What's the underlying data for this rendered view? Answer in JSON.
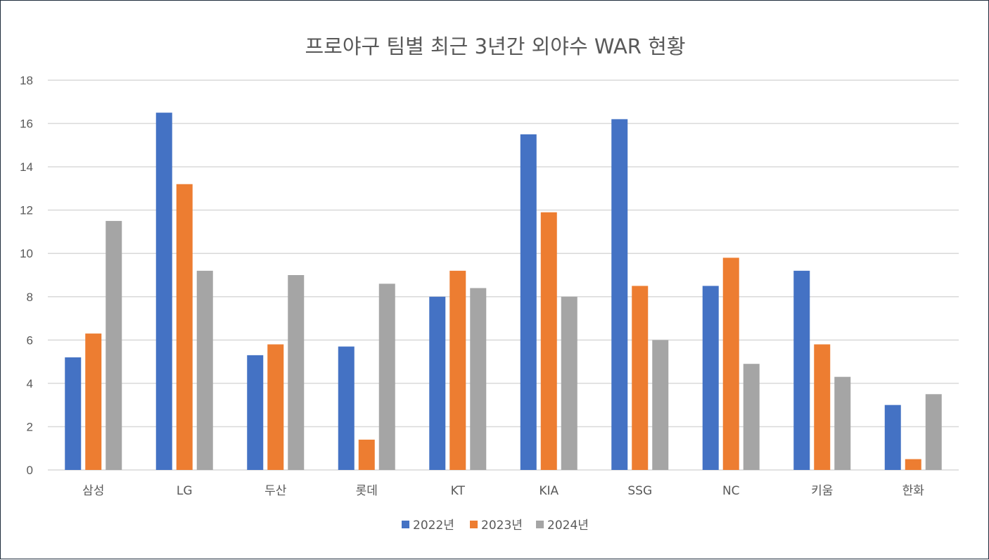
{
  "chart_data": {
    "type": "bar",
    "title": "프로야구 팀별 최근 3년간 외야수 WAR 현황",
    "xlabel": "",
    "ylabel": "",
    "categories": [
      "삼성",
      "LG",
      "두산",
      "롯데",
      "KT",
      "KIA",
      "SSG",
      "NC",
      "키움",
      "한화"
    ],
    "series": [
      {
        "name": "2022년",
        "color": "#4472c4",
        "values": [
          5.2,
          16.5,
          5.3,
          5.7,
          8.0,
          15.5,
          16.2,
          8.5,
          9.2,
          3.0
        ]
      },
      {
        "name": "2023년",
        "color": "#ed7d31",
        "values": [
          6.3,
          13.2,
          5.8,
          1.4,
          9.2,
          11.9,
          8.5,
          9.8,
          5.8,
          0.5
        ]
      },
      {
        "name": "2024년",
        "color": "#a5a5a5",
        "values": [
          11.5,
          9.2,
          9.0,
          8.6,
          8.4,
          8.0,
          6.0,
          4.9,
          4.3,
          3.5
        ]
      }
    ],
    "ylim": [
      0,
      18
    ],
    "yticks": [
      "0",
      "2",
      "4",
      "6",
      "8",
      "10",
      "12",
      "14",
      "16",
      "18"
    ],
    "grid": true,
    "legend_position": "bottom"
  }
}
